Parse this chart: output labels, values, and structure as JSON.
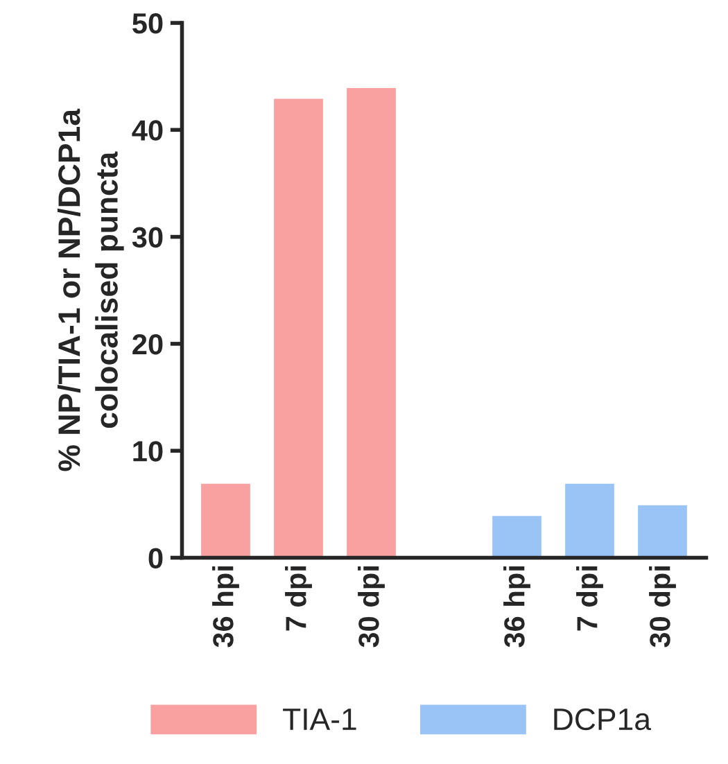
{
  "chart_data": {
    "type": "bar",
    "ylabel": "% NP/TIA-1 or NP/DCP1a\ncolocalised puncta",
    "categories": [
      "36 hpi",
      "7 dpi",
      "30 dpi",
      null,
      "36 hpi",
      "7 dpi",
      "30 dpi"
    ],
    "series": [
      {
        "name": "TIA-1",
        "color": "#f9a0a0",
        "values": [
          7,
          43,
          44,
          null,
          null,
          null,
          null
        ]
      },
      {
        "name": "DCP1a",
        "color": "#99c4f5",
        "values": [
          null,
          null,
          null,
          null,
          4,
          7,
          5
        ]
      }
    ],
    "ylim": [
      0,
      50
    ],
    "yticks": [
      0,
      10,
      20,
      30,
      40,
      50
    ],
    "grid": false,
    "legend": "bottom"
  }
}
